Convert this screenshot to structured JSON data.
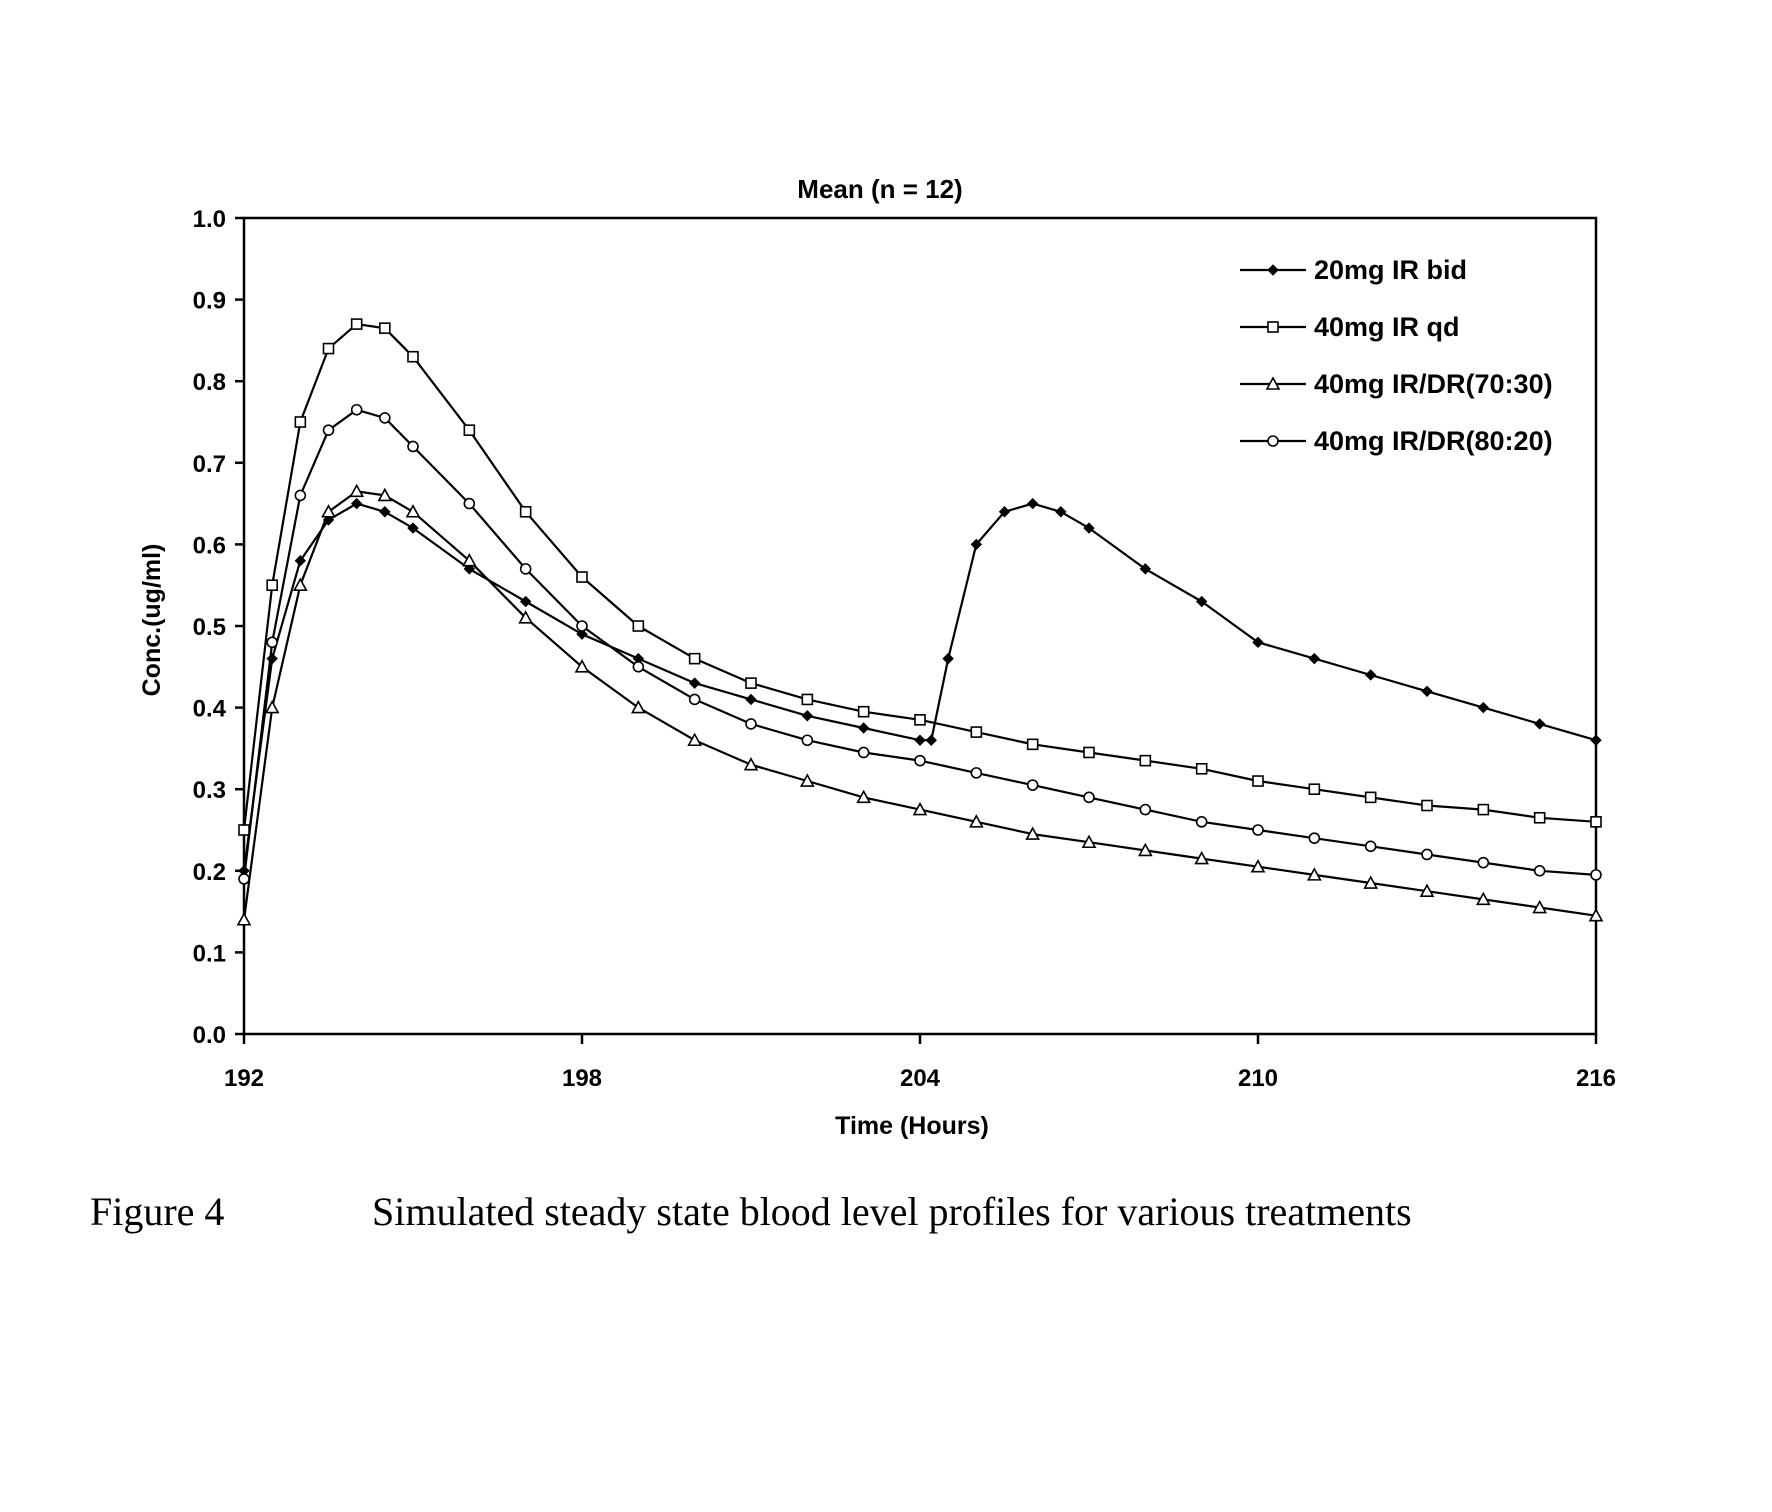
{
  "chart_data": {
    "type": "line",
    "title": "Mean (n = 12)",
    "xlabel": "Time (Hours)",
    "ylabel": "Conc.(ug/ml)",
    "xlim": [
      192,
      216
    ],
    "ylim": [
      0.0,
      1.0
    ],
    "x_ticks": [
      "192",
      "198",
      "204",
      "210",
      "216"
    ],
    "y_ticks": [
      "0.0",
      "0.1",
      "0.2",
      "0.3",
      "0.4",
      "0.5",
      "0.6",
      "0.7",
      "0.8",
      "0.9",
      "1.0"
    ],
    "grid": false,
    "legend_position": "top-right",
    "series": [
      {
        "name": "20mg IR bid",
        "marker": "diamond",
        "x": [
          192,
          192.5,
          193,
          193.5,
          194,
          194.5,
          195,
          196,
          197,
          198,
          199,
          200,
          201,
          202,
          203,
          204,
          204.2,
          204.5,
          205,
          205.5,
          206,
          206.5,
          207,
          208,
          209,
          210,
          211,
          212,
          213,
          214,
          215,
          216
        ],
        "y": [
          0.2,
          0.46,
          0.58,
          0.63,
          0.65,
          0.64,
          0.62,
          0.57,
          0.53,
          0.49,
          0.46,
          0.43,
          0.41,
          0.39,
          0.375,
          0.36,
          0.36,
          0.46,
          0.6,
          0.64,
          0.65,
          0.64,
          0.62,
          0.57,
          0.53,
          0.48,
          0.46,
          0.44,
          0.42,
          0.4,
          0.38,
          0.36
        ]
      },
      {
        "name": "40mg IR qd",
        "marker": "square",
        "x": [
          192,
          192.5,
          193,
          193.5,
          194,
          194.5,
          195,
          196,
          197,
          198,
          199,
          200,
          201,
          202,
          203,
          204,
          205,
          206,
          207,
          208,
          209,
          210,
          211,
          212,
          213,
          214,
          215,
          216
        ],
        "y": [
          0.25,
          0.55,
          0.75,
          0.84,
          0.87,
          0.865,
          0.83,
          0.74,
          0.64,
          0.56,
          0.5,
          0.46,
          0.43,
          0.41,
          0.395,
          0.385,
          0.37,
          0.355,
          0.345,
          0.335,
          0.325,
          0.31,
          0.3,
          0.29,
          0.28,
          0.275,
          0.265,
          0.26
        ]
      },
      {
        "name": "40mg IR/DR(70:30)",
        "marker": "triangle",
        "x": [
          192,
          192.5,
          193,
          193.5,
          194,
          194.5,
          195,
          196,
          197,
          198,
          199,
          200,
          201,
          202,
          203,
          204,
          205,
          206,
          207,
          208,
          209,
          210,
          211,
          212,
          213,
          214,
          215,
          216
        ],
        "y": [
          0.14,
          0.4,
          0.55,
          0.64,
          0.665,
          0.66,
          0.64,
          0.58,
          0.51,
          0.45,
          0.4,
          0.36,
          0.33,
          0.31,
          0.29,
          0.275,
          0.26,
          0.245,
          0.235,
          0.225,
          0.215,
          0.205,
          0.195,
          0.185,
          0.175,
          0.165,
          0.155,
          0.145
        ]
      },
      {
        "name": "40mg IR/DR(80:20)",
        "marker": "circle",
        "x": [
          192,
          192.5,
          193,
          193.5,
          194,
          194.5,
          195,
          196,
          197,
          198,
          199,
          200,
          201,
          202,
          203,
          204,
          205,
          206,
          207,
          208,
          209,
          210,
          211,
          212,
          213,
          214,
          215,
          216
        ],
        "y": [
          0.19,
          0.48,
          0.66,
          0.74,
          0.765,
          0.755,
          0.72,
          0.65,
          0.57,
          0.5,
          0.45,
          0.41,
          0.38,
          0.36,
          0.345,
          0.335,
          0.32,
          0.305,
          0.29,
          0.275,
          0.26,
          0.25,
          0.24,
          0.23,
          0.22,
          0.21,
          0.2,
          0.195
        ]
      }
    ]
  },
  "caption": {
    "label": "Figure 4",
    "text": "Simulated steady state blood level profiles for various treatments"
  }
}
